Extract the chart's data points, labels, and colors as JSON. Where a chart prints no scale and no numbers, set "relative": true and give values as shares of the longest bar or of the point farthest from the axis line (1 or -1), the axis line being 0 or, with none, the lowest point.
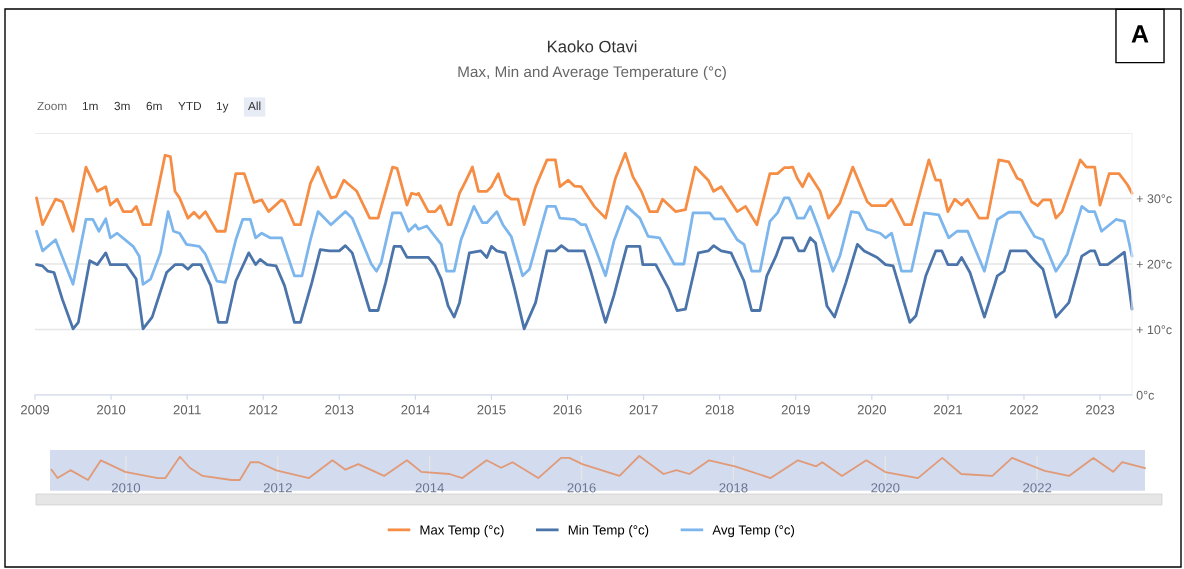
{
  "chart_data": [
    {
      "type": "line",
      "title": "Kaoko Otavi",
      "subtitle": "Max, Min and Average Temperature (°c)",
      "annotations": [
        "A",
        "Zoom",
        "1m",
        "3m",
        "6m",
        "YTD",
        "1y",
        "All"
      ],
      "xlim": [
        2009.0,
        2023.42
      ],
      "xticks": [
        2009,
        2010,
        2011,
        2012,
        2013,
        2014,
        2015,
        2016,
        2017,
        2018,
        2019,
        2020,
        2021,
        2022,
        2023
      ],
      "ylim": [
        0,
        40
      ],
      "yticks": [
        {
          "value": 0,
          "label": "0°c"
        },
        {
          "value": 10,
          "label": "+ 10°c"
        },
        {
          "value": 20,
          "label": "+ 20°c"
        },
        {
          "value": 30,
          "label": "+ 30°c"
        },
        {
          "value": 40,
          "label": null
        }
      ],
      "grid": "y",
      "legend": "bottom",
      "series": [
        {
          "name": "Max Temp (°c)",
          "color": "#f68d44",
          "x": [
            2009.02,
            2009.1,
            2009.27,
            2009.36,
            2009.5,
            2009.67,
            2009.82,
            2009.93,
            2009.99,
            2010.08,
            2010.16,
            2010.27,
            2010.33,
            2010.42,
            2010.52,
            2010.71,
            2010.78,
            2010.84,
            2010.9,
            2011.01,
            2011.09,
            2011.16,
            2011.24,
            2011.39,
            2011.5,
            2011.64,
            2011.75,
            2011.88,
            2011.98,
            2012.07,
            2012.24,
            2012.28,
            2012.41,
            2012.49,
            2012.62,
            2012.72,
            2012.79,
            2012.89,
            2012.96,
            2013.06,
            2013.13,
            2013.23,
            2013.4,
            2013.51,
            2013.7,
            2013.76,
            2013.89,
            2013.95,
            2014.02,
            2014.04,
            2014.17,
            2014.26,
            2014.33,
            2014.43,
            2014.47,
            2014.58,
            2014.66,
            2014.75,
            2014.83,
            2014.94,
            2015.0,
            2015.09,
            2015.18,
            2015.26,
            2015.35,
            2015.43,
            2015.58,
            2015.73,
            2015.84,
            2015.9,
            2016.01,
            2016.09,
            2016.18,
            2016.35,
            2016.5,
            2016.63,
            2016.76,
            2016.86,
            2016.97,
            2017.08,
            2017.18,
            2017.25,
            2017.42,
            2017.55,
            2017.68,
            2017.85,
            2017.92,
            2018.02,
            2018.23,
            2018.34,
            2018.49,
            2018.66,
            2018.76,
            2018.85,
            2018.91,
            2018.96,
            2019.02,
            2019.09,
            2019.17,
            2019.32,
            2019.43,
            2019.58,
            2019.75,
            2019.94,
            2020.0,
            2020.18,
            2020.26,
            2020.43,
            2020.52,
            2020.75,
            2020.84,
            2020.9,
            2021.0,
            2021.09,
            2021.18,
            2021.26,
            2021.41,
            2021.52,
            2021.67,
            2021.8,
            2021.91,
            2021.97,
            2022.1,
            2022.18,
            2022.25,
            2022.35,
            2022.42,
            2022.5,
            2022.74,
            2022.82,
            2022.93,
            2023.0,
            2023.12,
            2023.25,
            2023.36,
            2023.42
          ],
          "values": [
            30.1,
            26.0,
            29.9,
            29.5,
            25.0,
            34.8,
            31.1,
            31.8,
            29.0,
            29.9,
            28.0,
            28.0,
            28.8,
            26.0,
            26.0,
            36.6,
            36.4,
            31.1,
            30.1,
            27.0,
            27.9,
            27.0,
            28.0,
            25.0,
            25.0,
            33.8,
            33.8,
            29.4,
            29.8,
            28.0,
            29.8,
            29.5,
            26.0,
            26.0,
            32.3,
            34.8,
            32.8,
            30.1,
            30.3,
            32.8,
            32.1,
            31.1,
            27.0,
            27.0,
            34.8,
            34.6,
            29.0,
            30.8,
            30.6,
            30.8,
            28.0,
            28.0,
            28.9,
            26.0,
            26.0,
            30.8,
            32.6,
            34.8,
            31.1,
            31.1,
            31.8,
            33.8,
            30.6,
            29.9,
            29.9,
            26.0,
            31.8,
            35.9,
            35.9,
            31.8,
            32.8,
            31.9,
            31.8,
            28.8,
            27.0,
            33.1,
            36.9,
            33.3,
            31.1,
            28.0,
            28.0,
            29.9,
            28.0,
            28.3,
            34.8,
            32.8,
            31.1,
            31.8,
            28.0,
            28.8,
            26.0,
            33.8,
            33.8,
            34.7,
            34.7,
            34.8,
            33.1,
            31.8,
            33.8,
            31.1,
            27.0,
            29.3,
            34.8,
            29.5,
            28.9,
            28.9,
            29.9,
            26.0,
            26.0,
            35.9,
            32.8,
            32.8,
            28.0,
            29.9,
            29.0,
            29.9,
            27.0,
            27.0,
            35.9,
            35.6,
            33.1,
            32.8,
            29.5,
            28.9,
            29.8,
            29.8,
            27.0,
            28.0,
            35.9,
            34.8,
            34.8,
            29.0,
            33.8,
            33.8,
            32.1,
            30.8
          ]
        },
        {
          "name": "Min Temp (°c)",
          "color": "#4b74aa",
          "x": [
            2009.02,
            2009.1,
            2009.17,
            2009.25,
            2009.36,
            2009.5,
            2009.57,
            2009.72,
            2009.82,
            2009.93,
            2009.99,
            2010.2,
            2010.33,
            2010.42,
            2010.54,
            2010.73,
            2010.84,
            2010.94,
            2011.01,
            2011.07,
            2011.18,
            2011.31,
            2011.41,
            2011.52,
            2011.64,
            2011.81,
            2011.9,
            2011.96,
            2012.05,
            2012.17,
            2012.28,
            2012.41,
            2012.49,
            2012.64,
            2012.75,
            2012.87,
            2013.0,
            2013.08,
            2013.17,
            2013.4,
            2013.51,
            2013.61,
            2013.72,
            2013.81,
            2013.89,
            2014.02,
            2014.04,
            2014.17,
            2014.26,
            2014.34,
            2014.43,
            2014.51,
            2014.58,
            2014.71,
            2014.86,
            2014.94,
            2015.0,
            2015.07,
            2015.18,
            2015.3,
            2015.43,
            2015.58,
            2015.73,
            2015.84,
            2015.92,
            2016.01,
            2016.22,
            2016.31,
            2016.5,
            2016.61,
            2016.78,
            2016.95,
            2016.99,
            2017.16,
            2017.33,
            2017.44,
            2017.55,
            2017.72,
            2017.85,
            2017.92,
            2018.02,
            2018.15,
            2018.32,
            2018.42,
            2018.53,
            2018.62,
            2018.74,
            2018.83,
            2018.91,
            2018.96,
            2019.04,
            2019.11,
            2019.19,
            2019.26,
            2019.41,
            2019.51,
            2019.66,
            2019.81,
            2019.9,
            2020.07,
            2020.18,
            2020.28,
            2020.5,
            2020.58,
            2020.71,
            2020.84,
            2020.92,
            2021.0,
            2021.12,
            2021.18,
            2021.29,
            2021.48,
            2021.65,
            2021.74,
            2021.82,
            2022.03,
            2022.14,
            2022.25,
            2022.42,
            2022.59,
            2022.76,
            2022.87,
            2022.93,
            2023.0,
            2023.1,
            2023.32,
            2023.42
          ],
          "values": [
            19.9,
            19.7,
            18.9,
            18.7,
            14.6,
            10.1,
            11.1,
            20.5,
            19.9,
            21.7,
            19.9,
            19.9,
            17.7,
            10.1,
            11.9,
            18.7,
            19.9,
            19.9,
            19.2,
            19.9,
            19.9,
            16.7,
            11.1,
            11.1,
            17.4,
            21.7,
            19.9,
            20.7,
            19.9,
            19.7,
            16.7,
            11.1,
            11.1,
            17.2,
            22.2,
            22.0,
            22.0,
            22.8,
            21.7,
            12.9,
            12.9,
            17.2,
            22.7,
            22.7,
            21.0,
            21.0,
            21.0,
            21.0,
            19.7,
            17.7,
            13.6,
            11.9,
            14.1,
            21.7,
            22.0,
            21.0,
            22.7,
            22.0,
            21.7,
            16.4,
            10.1,
            14.1,
            22.0,
            22.0,
            22.8,
            22.0,
            22.0,
            18.7,
            11.1,
            15.2,
            22.7,
            22.7,
            19.9,
            19.9,
            16.2,
            12.9,
            13.1,
            21.7,
            22.0,
            22.8,
            22.0,
            21.7,
            17.4,
            12.9,
            12.9,
            18.2,
            21.2,
            24.0,
            24.0,
            24.0,
            22.0,
            22.0,
            24.0,
            23.2,
            13.6,
            11.9,
            17.2,
            23.0,
            22.0,
            21.0,
            19.9,
            19.7,
            11.1,
            12.1,
            18.2,
            22.0,
            22.0,
            19.9,
            19.9,
            21.0,
            18.7,
            11.9,
            18.2,
            18.9,
            22.0,
            22.0,
            20.5,
            19.2,
            11.9,
            14.1,
            21.2,
            22.0,
            22.0,
            19.9,
            19.9,
            21.8,
            13.1
          ]
        },
        {
          "name": "Avg Temp (°c)",
          "color": "#7db6ec",
          "x": [
            2009.02,
            2009.1,
            2009.27,
            2009.5,
            2009.67,
            2009.76,
            2009.84,
            2009.93,
            2009.99,
            2010.08,
            2010.29,
            2010.37,
            2010.42,
            2010.52,
            2010.65,
            2010.75,
            2010.82,
            2010.9,
            2010.99,
            2011.16,
            2011.24,
            2011.39,
            2011.5,
            2011.64,
            2011.73,
            2011.83,
            2011.9,
            2011.98,
            2012.09,
            2012.24,
            2012.41,
            2012.51,
            2012.62,
            2012.72,
            2012.89,
            2013.08,
            2013.17,
            2013.42,
            2013.49,
            2013.55,
            2013.7,
            2013.81,
            2013.91,
            2014.0,
            2014.04,
            2014.15,
            2014.34,
            2014.41,
            2014.51,
            2014.6,
            2014.77,
            2014.88,
            2014.94,
            2015.07,
            2015.15,
            2015.26,
            2015.41,
            2015.5,
            2015.73,
            2015.84,
            2015.9,
            2016.09,
            2016.18,
            2016.24,
            2016.37,
            2016.5,
            2016.61,
            2016.78,
            2016.95,
            2017.06,
            2017.21,
            2017.4,
            2017.53,
            2017.65,
            2017.87,
            2017.93,
            2018.06,
            2018.23,
            2018.32,
            2018.42,
            2018.53,
            2018.66,
            2018.76,
            2018.85,
            2018.91,
            2018.96,
            2019.02,
            2019.11,
            2019.19,
            2019.3,
            2019.49,
            2019.58,
            2019.73,
            2019.83,
            2019.94,
            2020.11,
            2020.18,
            2020.26,
            2020.39,
            2020.52,
            2020.69,
            2020.88,
            2021.01,
            2021.12,
            2021.26,
            2021.48,
            2021.65,
            2021.8,
            2021.95,
            2022.14,
            2022.25,
            2022.42,
            2022.57,
            2022.76,
            2022.85,
            2022.93,
            2023.02,
            2023.21,
            2023.32,
            2023.42
          ],
          "values": [
            25.0,
            22.0,
            23.7,
            16.9,
            26.8,
            26.8,
            25.0,
            26.9,
            24.0,
            24.7,
            22.7,
            21.2,
            16.9,
            17.7,
            21.7,
            28.0,
            25.0,
            24.7,
            23.0,
            22.7,
            21.5,
            17.4,
            17.2,
            23.7,
            26.8,
            26.8,
            24.0,
            24.7,
            24.0,
            24.0,
            18.2,
            18.2,
            23.7,
            28.0,
            26.0,
            28.0,
            27.0,
            20.0,
            18.9,
            20.2,
            27.8,
            27.8,
            25.0,
            26.0,
            25.3,
            25.8,
            23.0,
            18.9,
            18.9,
            23.7,
            28.8,
            26.3,
            26.3,
            28.0,
            26.0,
            24.2,
            18.2,
            19.2,
            28.8,
            28.8,
            27.0,
            26.8,
            26.0,
            26.0,
            22.2,
            18.2,
            23.5,
            28.8,
            27.0,
            24.2,
            24.0,
            20.0,
            20.0,
            27.8,
            27.8,
            26.9,
            26.9,
            23.7,
            23.0,
            18.9,
            18.9,
            26.5,
            27.8,
            30.1,
            30.1,
            28.8,
            27.0,
            27.0,
            28.8,
            25.5,
            18.9,
            21.2,
            28.0,
            27.8,
            25.3,
            24.7,
            24.0,
            24.7,
            18.9,
            18.9,
            27.8,
            27.5,
            24.0,
            25.0,
            25.0,
            18.9,
            26.8,
            27.9,
            27.9,
            24.2,
            23.7,
            18.9,
            21.5,
            28.8,
            28.0,
            28.0,
            25.0,
            26.8,
            26.5,
            21.2
          ]
        }
      ]
    },
    {
      "type": "line",
      "relative": true,
      "xlim": [
        2009.0,
        2023.42
      ],
      "xticks": [
        2010,
        2012,
        2014,
        2016,
        2018,
        2020,
        2022
      ],
      "grid": "x",
      "bands": [
        {
          "axis": "x",
          "from": 2009.0,
          "to": 2023.42,
          "color": "#d3dbee"
        }
      ],
      "series": [
        {
          "color": "#e09a78",
          "x": [
            2009.02,
            2009.1,
            2009.27,
            2009.5,
            2009.67,
            2009.99,
            2010.42,
            2010.52,
            2010.71,
            2010.84,
            2011.01,
            2011.39,
            2011.5,
            2011.64,
            2011.75,
            2011.98,
            2012.41,
            2012.72,
            2012.89,
            2013.06,
            2013.4,
            2013.7,
            2013.89,
            2014.26,
            2014.43,
            2014.75,
            2014.94,
            2015.09,
            2015.43,
            2015.73,
            2015.84,
            2016.01,
            2016.5,
            2016.76,
            2017.08,
            2017.25,
            2017.42,
            2017.68,
            2018.02,
            2018.49,
            2018.85,
            2019.09,
            2019.17,
            2019.43,
            2019.75,
            2020.0,
            2020.43,
            2020.75,
            2021.0,
            2021.41,
            2021.67,
            2022.1,
            2022.42,
            2022.74,
            2023.0,
            2023.12,
            2023.42
          ],
          "values": [
            0.43,
            0.08,
            0.41,
            0,
            0.82,
            0.34,
            0.08,
            0.08,
            0.97,
            0.51,
            0.17,
            0,
            0,
            0.74,
            0.74,
            0.4,
            0.08,
            0.82,
            0.43,
            0.66,
            0.17,
            0.82,
            0.34,
            0.25,
            0.08,
            0.82,
            0.51,
            0.74,
            0.08,
            0.92,
            0.92,
            0.66,
            0.17,
            1,
            0.25,
            0.41,
            0.25,
            0.82,
            0.57,
            0.08,
            0.82,
            0.57,
            0.74,
            0.17,
            0.82,
            0.33,
            0.08,
            0.92,
            0.25,
            0.17,
            0.92,
            0.38,
            0.17,
            0.92,
            0.34,
            0.74,
            0.49
          ]
        }
      ]
    }
  ]
}
